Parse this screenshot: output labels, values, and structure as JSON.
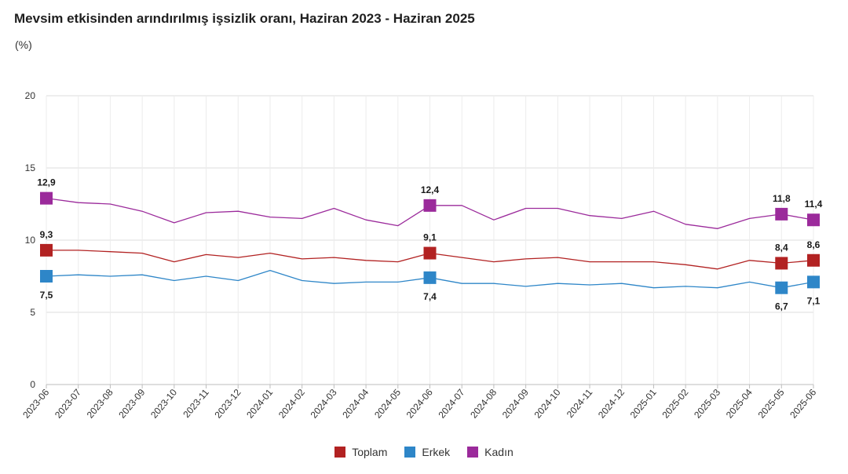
{
  "title": "Mevsim etkisinden arındırılmış işsizlik oranı, Haziran 2023 - Haziran 2025",
  "unit": "(%)",
  "chart_data": {
    "type": "line",
    "title": "Mevsim etkisinden arındırılmış işsizlik oranı, Haziran 2023 - Haziran 2025",
    "ylabel": "(%)",
    "xlabel": "",
    "ylim": [
      0,
      20
    ],
    "yticks": [
      0,
      5,
      10,
      15,
      20
    ],
    "grid": true,
    "legend": "bottom",
    "categories": [
      "2023-06",
      "2023-07",
      "2023-08",
      "2023-09",
      "2023-10",
      "2023-11",
      "2023-12",
      "2024-01",
      "2024-02",
      "2024-03",
      "2024-04",
      "2024-05",
      "2024-06",
      "2024-07",
      "2024-08",
      "2024-09",
      "2024-10",
      "2024-11",
      "2024-12",
      "2025-01",
      "2025-02",
      "2025-03",
      "2025-04",
      "2025-05",
      "2025-06"
    ],
    "series": [
      {
        "name": "Toplam",
        "color": "#b22222",
        "values": [
          9.3,
          9.3,
          9.2,
          9.1,
          8.5,
          9.0,
          8.8,
          9.1,
          8.7,
          8.8,
          8.6,
          8.5,
          9.1,
          8.8,
          8.5,
          8.7,
          8.8,
          8.5,
          8.5,
          8.5,
          8.3,
          8.0,
          8.6,
          8.4,
          8.6
        ],
        "labels": {
          "0": "9,3",
          "12": "9,1",
          "23": "8,4",
          "24": "8,6"
        }
      },
      {
        "name": "Erkek",
        "color": "#2e86c8",
        "values": [
          7.5,
          7.6,
          7.5,
          7.6,
          7.2,
          7.5,
          7.2,
          7.9,
          7.2,
          7.0,
          7.1,
          7.1,
          7.4,
          7.0,
          7.0,
          6.8,
          7.0,
          6.9,
          7.0,
          6.7,
          6.8,
          6.7,
          7.1,
          6.7,
          7.1
        ],
        "labels": {
          "0": "7,5",
          "12": "7,4",
          "23": "6,7",
          "24": "7,1"
        }
      },
      {
        "name": "Kadın",
        "color": "#9b2a9b",
        "values": [
          12.9,
          12.6,
          12.5,
          12.0,
          11.2,
          11.9,
          12.0,
          11.6,
          11.5,
          12.2,
          11.4,
          11.0,
          12.4,
          12.4,
          11.4,
          12.2,
          12.2,
          11.7,
          11.5,
          12.0,
          11.1,
          10.8,
          11.5,
          11.8,
          11.4
        ],
        "labels": {
          "0": "12,9",
          "12": "12,4",
          "23": "11,8",
          "24": "11,4"
        }
      }
    ]
  }
}
